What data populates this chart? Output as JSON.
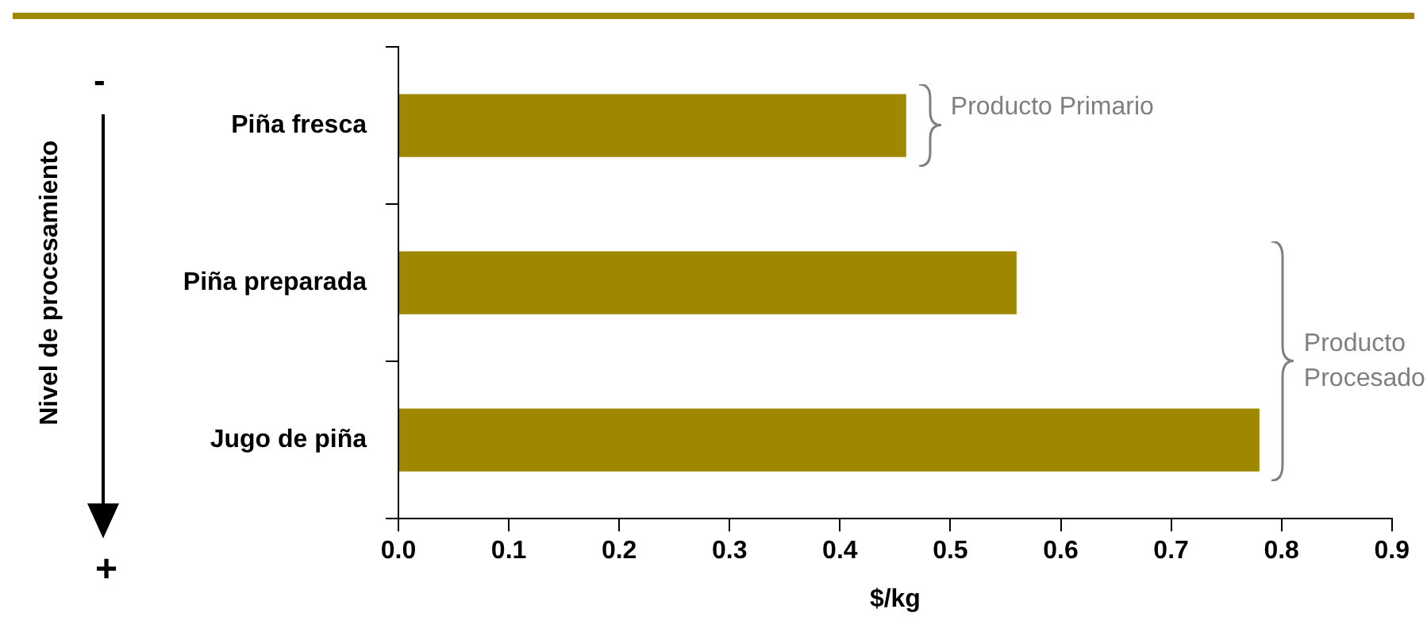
{
  "chart_data": {
    "type": "bar",
    "orientation": "horizontal",
    "categories": [
      "Piña fresca",
      "Piña preparada",
      "Jugo de piña"
    ],
    "values": [
      0.46,
      0.56,
      0.78
    ],
    "color": "#a08700",
    "xlim": [
      0,
      0.9
    ],
    "xticks": [
      {
        "value": 0,
        "label": "0.0"
      },
      0.1,
      0.2,
      0.3,
      0.4,
      0.5,
      0.6,
      0.7,
      0.8,
      0.9
    ],
    "xlabel": "$/kg",
    "ylabel": "Nivel de procesamiento",
    "grid": false,
    "legend": false,
    "annotations": [
      "-",
      "+",
      "Producto Primario",
      "Producto Procesado"
    ]
  }
}
